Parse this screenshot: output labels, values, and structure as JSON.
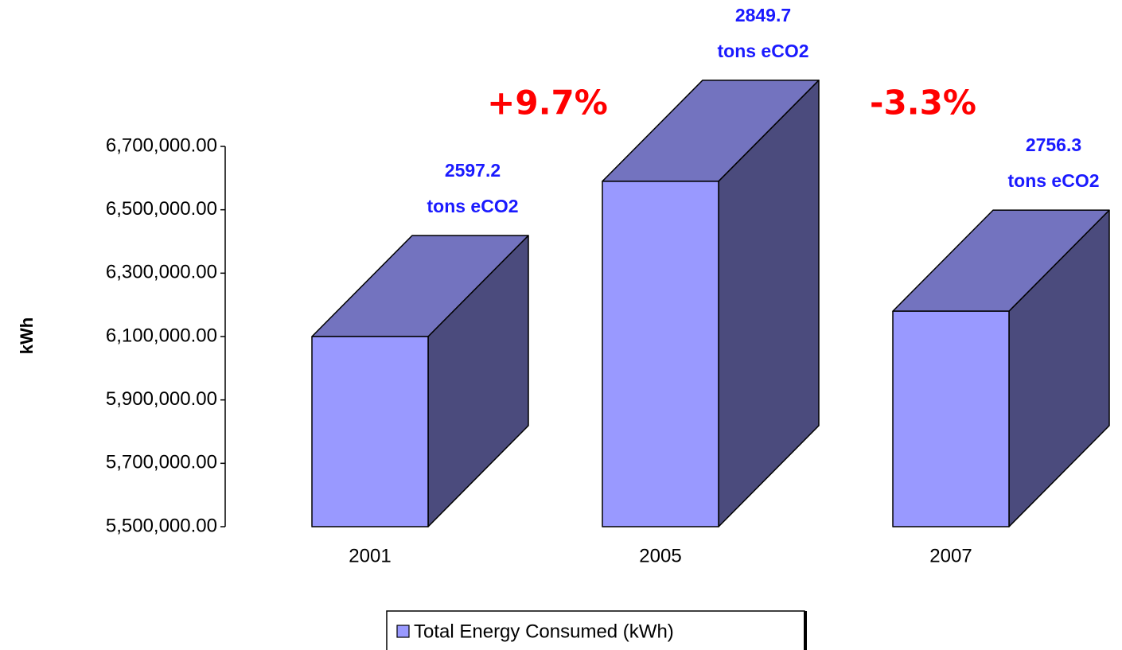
{
  "chart_data": {
    "type": "bar3d",
    "y_label": "kWh",
    "categories": [
      "2001",
      "2005",
      "2007"
    ],
    "series": [
      {
        "name": "Total Energy Consumed (kWh)",
        "color": "#9999ff",
        "values": [
          6100000,
          6590000,
          6180000
        ]
      }
    ],
    "ylim": [
      5500000,
      6700000
    ],
    "yticks": [
      {
        "value": 5500000,
        "label": "5,500,000.00"
      },
      {
        "value": 5700000,
        "label": "5,700,000.00"
      },
      {
        "value": 5900000,
        "label": "5,900,000.00"
      },
      {
        "value": 6100000,
        "label": "6,100,000.00"
      },
      {
        "value": 6300000,
        "label": "6,300,000.00"
      },
      {
        "value": 6500000,
        "label": "6,500,000.00"
      },
      {
        "value": 6700000,
        "label": "6,700,000.00"
      }
    ],
    "annotations": {
      "emissions": [
        [
          "2597.2",
          "tons eCO2"
        ],
        [
          "2849.7",
          "tons eCO2"
        ],
        [
          "2756.3",
          "tons eCO2"
        ]
      ],
      "changes": [
        "+9.7%",
        "-3.3%"
      ]
    },
    "legend": "bottom"
  }
}
